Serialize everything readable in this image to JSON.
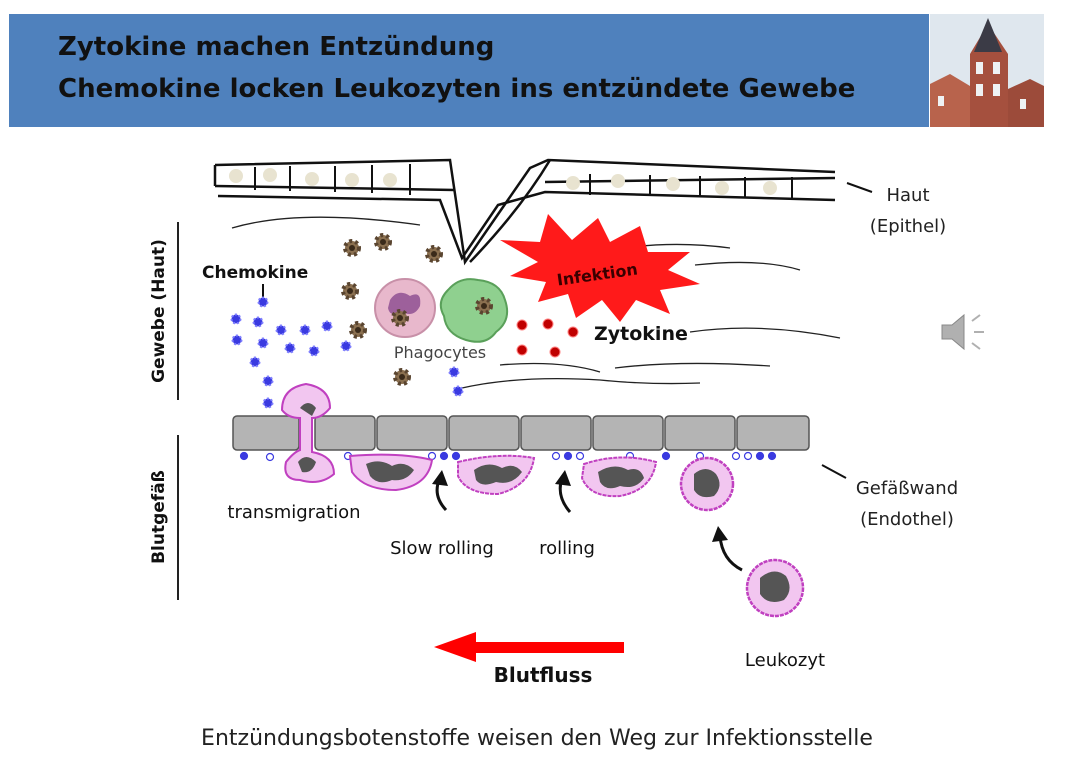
{
  "slide": {
    "title_line1": "Zytokine machen Entzündung",
    "title_line2": "Chemokine locken Leukozyten ins entzündete Gewebe",
    "caption": "Entzündungsbotenstoffe weisen den Weg zur Infektionsstelle"
  },
  "diagram": {
    "labels": {
      "haut": "Haut",
      "epithel": "(Epithel)",
      "infektion": "Infektion",
      "chemokine": "Chemokine",
      "zytokine": "Zytokine",
      "phagocytes": "Phagocytes",
      "gewebe_axis": "Gewebe (Haut)",
      "blutgefaess_axis": "Blutgefäß",
      "gefaesswand": "Gefäßwand",
      "endothel": "(Endothel)",
      "transmigration": "transmigration",
      "slow_rolling": "Slow rolling",
      "rolling": "rolling",
      "leukozyt": "Leukozyt",
      "blutfluss": "Blutfluss"
    },
    "colors": {
      "banner": "#4f81bd",
      "infection_star": "#ff1a1a",
      "zytokine_dots": "#c00000",
      "chemokine_dots": "#3a3ae0",
      "leukocyte_fill": "#f2c6f0",
      "leukocyte_border": "#c040c0",
      "flow_arrow": "#ff0000"
    }
  },
  "icons": {
    "speaker": "speaker-icon",
    "building_photo": "tower-building-photo"
  }
}
